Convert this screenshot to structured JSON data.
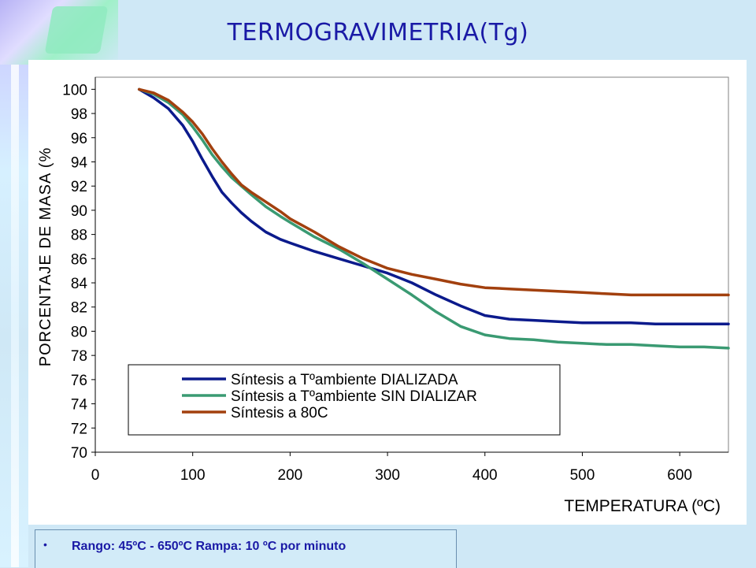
{
  "slide": {
    "title": "TERMOGRAVIMETRIA(Tg)",
    "note_bullet": "•",
    "note_text": "Rango: 45ºC - 650ºC Rampa: 10 ºC por minuto"
  },
  "chart_data": {
    "type": "line",
    "title": "",
    "xlabel": "TEMPERATURA (ºC)",
    "ylabel": "PORCENTAJE DE MASA (%",
    "xlim": [
      0,
      650
    ],
    "ylim": [
      70,
      101
    ],
    "xticks": [
      0,
      100,
      200,
      300,
      400,
      500,
      600
    ],
    "yticks": [
      70,
      72,
      74,
      76,
      78,
      80,
      82,
      84,
      86,
      88,
      90,
      92,
      94,
      96,
      98,
      100
    ],
    "grid": false,
    "legend_position": "lower-left",
    "series": [
      {
        "name": "Síntesis a Tºambiente DIALIZADA",
        "color": "#0b1a8c",
        "x": [
          45,
          60,
          75,
          90,
          100,
          110,
          120,
          130,
          140,
          150,
          160,
          175,
          190,
          200,
          225,
          250,
          275,
          300,
          325,
          350,
          375,
          400,
          425,
          450,
          475,
          500,
          525,
          550,
          575,
          600,
          625,
          650
        ],
        "y": [
          100,
          99.3,
          98.4,
          97.0,
          95.7,
          94.2,
          92.8,
          91.5,
          90.6,
          89.8,
          89.1,
          88.2,
          87.6,
          87.3,
          86.6,
          86.0,
          85.4,
          84.8,
          84.0,
          83.0,
          82.1,
          81.3,
          81.0,
          80.9,
          80.8,
          80.7,
          80.7,
          80.7,
          80.6,
          80.6,
          80.6,
          80.6
        ]
      },
      {
        "name": "Síntesis a Tºambiente SIN DIALIZAR",
        "color": "#3a9a72",
        "x": [
          45,
          60,
          75,
          90,
          100,
          110,
          120,
          130,
          140,
          150,
          160,
          175,
          190,
          200,
          225,
          250,
          275,
          300,
          325,
          350,
          375,
          400,
          425,
          450,
          475,
          500,
          525,
          550,
          575,
          600,
          625,
          650
        ],
        "y": [
          100,
          99.6,
          98.9,
          97.9,
          96.9,
          95.8,
          94.6,
          93.6,
          92.7,
          92.0,
          91.3,
          90.3,
          89.5,
          89.0,
          87.8,
          86.8,
          85.6,
          84.3,
          83.0,
          81.6,
          80.4,
          79.7,
          79.4,
          79.3,
          79.1,
          79.0,
          78.9,
          78.9,
          78.8,
          78.7,
          78.7,
          78.6
        ]
      },
      {
        "name": "Síntesis a 80C",
        "color": "#a2400e",
        "x": [
          45,
          60,
          75,
          90,
          100,
          110,
          120,
          130,
          140,
          150,
          160,
          175,
          190,
          200,
          225,
          250,
          275,
          300,
          325,
          350,
          375,
          400,
          425,
          450,
          475,
          500,
          525,
          550,
          575,
          600,
          625,
          650
        ],
        "y": [
          100,
          99.7,
          99.1,
          98.1,
          97.3,
          96.3,
          95.1,
          94.0,
          93.0,
          92.1,
          91.5,
          90.7,
          89.9,
          89.3,
          88.2,
          87.0,
          86.0,
          85.2,
          84.7,
          84.3,
          83.9,
          83.6,
          83.5,
          83.4,
          83.3,
          83.2,
          83.1,
          83.0,
          83.0,
          83.0,
          83.0,
          83.0
        ]
      }
    ]
  }
}
